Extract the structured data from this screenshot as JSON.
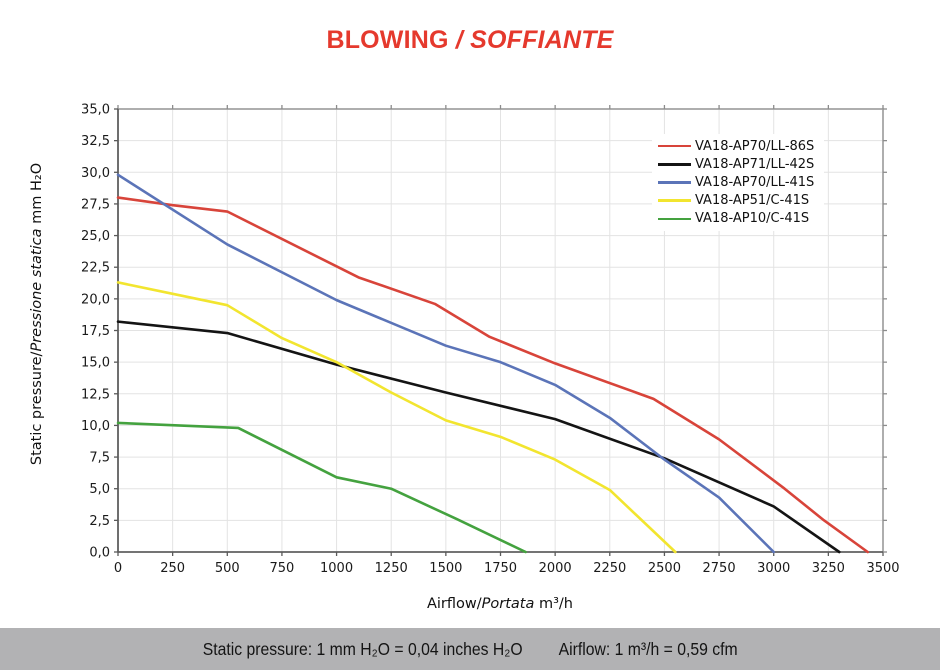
{
  "page": {
    "background": "#ffffff"
  },
  "title": {
    "normal": "BLOWING ",
    "italic": "/ SOFFIANTE",
    "color": "#e5392d"
  },
  "axes": {
    "x_title": {
      "prefix": "Airflow/",
      "italic": "Portata",
      "suffix": " m³/h"
    },
    "y_title": {
      "prefix": "Static pressure/",
      "italic": "Pressione statica",
      "suffix": " mm H₂O"
    }
  },
  "footer": {
    "pressure_note": "Static pressure: 1 mm H₂O = 0,04 inches H₂O",
    "airflow_note": "Airflow: 1 m³/h = 0,59 cfm",
    "background": "#b2b2b4"
  },
  "chart_data": {
    "type": "line",
    "title": "BLOWING / SOFFIANTE",
    "xlabel": "Airflow/Portata m³/h",
    "ylabel": "Static pressure/Pressione statica mm H₂O",
    "xlim": [
      0,
      3500
    ],
    "ylim": [
      0,
      35
    ],
    "grid": true,
    "legend_position": "top-right",
    "x_ticks": [
      0,
      250,
      500,
      750,
      1000,
      1250,
      1500,
      1750,
      2000,
      2250,
      2500,
      2750,
      3000,
      3250,
      3500
    ],
    "x_tick_labels": [
      "0",
      "250",
      "500",
      "750",
      "1000",
      "1250",
      "1500",
      "1750",
      "2000",
      "2250",
      "2500",
      "2750",
      "3000",
      "3250",
      "3500"
    ],
    "y_ticks": [
      0,
      2.5,
      5,
      7.5,
      10,
      12.5,
      15,
      17.5,
      20,
      22.5,
      25,
      27.5,
      30,
      32.5,
      35
    ],
    "y_tick_labels": [
      "0,0",
      "2,5",
      "5,0",
      "7,5",
      "10,0",
      "12,5",
      "15,0",
      "17,5",
      "20,0",
      "22,5",
      "25,0",
      "27,5",
      "30,0",
      "32,5",
      "35,0"
    ],
    "series": [
      {
        "name": "VA18-AP70/LL-86S",
        "color": "#d8443a",
        "points": [
          [
            0,
            28.0
          ],
          [
            250,
            27.4
          ],
          [
            500,
            26.9
          ],
          [
            1100,
            21.7
          ],
          [
            1450,
            19.6
          ],
          [
            1700,
            17.0
          ],
          [
            2000,
            14.9
          ],
          [
            2450,
            12.1
          ],
          [
            2750,
            8.9
          ],
          [
            3050,
            5.0
          ],
          [
            3230,
            2.5
          ],
          [
            3430,
            0
          ]
        ]
      },
      {
        "name": "VA18-AP71/LL-42S",
        "color": "#141414",
        "points": [
          [
            0,
            18.2
          ],
          [
            500,
            17.3
          ],
          [
            1000,
            14.8
          ],
          [
            1500,
            12.6
          ],
          [
            2000,
            10.5
          ],
          [
            2500,
            7.4
          ],
          [
            3000,
            3.6
          ],
          [
            3300,
            0
          ]
        ]
      },
      {
        "name": "VA18-AP70/LL-41S",
        "color": "#5b74b8",
        "points": [
          [
            0,
            29.8
          ],
          [
            500,
            24.3
          ],
          [
            1000,
            19.9
          ],
          [
            1500,
            16.3
          ],
          [
            1750,
            15.0
          ],
          [
            2000,
            13.2
          ],
          [
            2250,
            10.6
          ],
          [
            2500,
            7.3
          ],
          [
            2750,
            4.3
          ],
          [
            3000,
            0
          ]
        ]
      },
      {
        "name": "VA18-AP51/C-41S",
        "color": "#f2e52f",
        "points": [
          [
            0,
            21.3
          ],
          [
            250,
            20.4
          ],
          [
            500,
            19.5
          ],
          [
            750,
            16.9
          ],
          [
            1000,
            15.0
          ],
          [
            1250,
            12.6
          ],
          [
            1500,
            10.4
          ],
          [
            1750,
            9.1
          ],
          [
            2000,
            7.3
          ],
          [
            2250,
            4.9
          ],
          [
            2550,
            0
          ]
        ]
      },
      {
        "name": "VA18-AP10/C-41S",
        "color": "#44a23f",
        "points": [
          [
            0,
            10.2
          ],
          [
            550,
            9.8
          ],
          [
            1000,
            5.9
          ],
          [
            1250,
            5.0
          ],
          [
            1550,
            2.6
          ],
          [
            1865,
            0
          ]
        ]
      }
    ]
  }
}
